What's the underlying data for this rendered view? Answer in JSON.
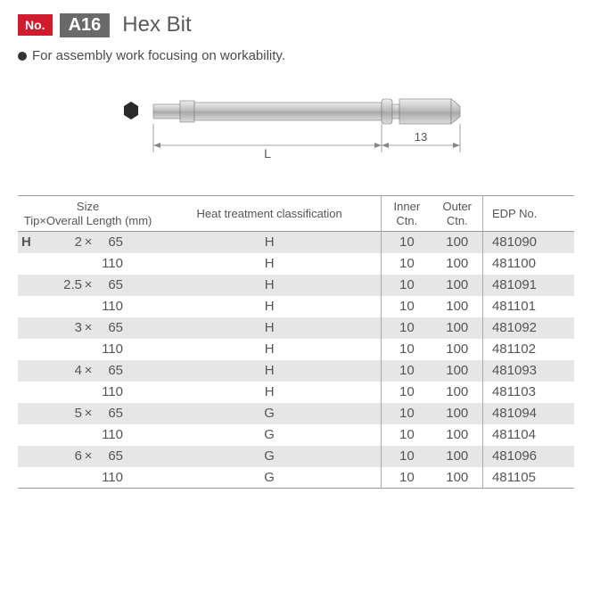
{
  "header": {
    "no_label": "No.",
    "code": "A16",
    "title": "Hex Bit"
  },
  "description": "For assembly work focusing on workability.",
  "diagram": {
    "L_label": "L",
    "shank_label": "13",
    "bit_fill": "#c8c8c8",
    "bit_stroke": "#7a7a7a",
    "dim_color": "#888888"
  },
  "table": {
    "headers": {
      "size_line1": "Size",
      "size_line2": "Tip×Overall Length (mm)",
      "heat": "Heat treatment classification",
      "inner": "Inner",
      "outer": "Outer",
      "ctn": "Ctn.",
      "edp": "EDP No."
    },
    "rows": [
      {
        "h": "H",
        "tip": "2",
        "x": "×",
        "len": "65",
        "heat": "H",
        "ictn": "10",
        "octn": "100",
        "edp": "481090",
        "shade": true
      },
      {
        "h": "",
        "tip": "",
        "x": "",
        "len": "110",
        "heat": "H",
        "ictn": "10",
        "octn": "100",
        "edp": "481100",
        "shade": false
      },
      {
        "h": "",
        "tip": "2.5",
        "x": "×",
        "len": "65",
        "heat": "H",
        "ictn": "10",
        "octn": "100",
        "edp": "481091",
        "shade": true
      },
      {
        "h": "",
        "tip": "",
        "x": "",
        "len": "110",
        "heat": "H",
        "ictn": "10",
        "octn": "100",
        "edp": "481101",
        "shade": false
      },
      {
        "h": "",
        "tip": "3",
        "x": "×",
        "len": "65",
        "heat": "H",
        "ictn": "10",
        "octn": "100",
        "edp": "481092",
        "shade": true
      },
      {
        "h": "",
        "tip": "",
        "x": "",
        "len": "110",
        "heat": "H",
        "ictn": "10",
        "octn": "100",
        "edp": "481102",
        "shade": false
      },
      {
        "h": "",
        "tip": "4",
        "x": "×",
        "len": "65",
        "heat": "H",
        "ictn": "10",
        "octn": "100",
        "edp": "481093",
        "shade": true
      },
      {
        "h": "",
        "tip": "",
        "x": "",
        "len": "110",
        "heat": "H",
        "ictn": "10",
        "octn": "100",
        "edp": "481103",
        "shade": false
      },
      {
        "h": "",
        "tip": "5",
        "x": "×",
        "len": "65",
        "heat": "G",
        "ictn": "10",
        "octn": "100",
        "edp": "481094",
        "shade": true
      },
      {
        "h": "",
        "tip": "",
        "x": "",
        "len": "110",
        "heat": "G",
        "ictn": "10",
        "octn": "100",
        "edp": "481104",
        "shade": false
      },
      {
        "h": "",
        "tip": "6",
        "x": "×",
        "len": "65",
        "heat": "G",
        "ictn": "10",
        "octn": "100",
        "edp": "481096",
        "shade": true
      },
      {
        "h": "",
        "tip": "",
        "x": "",
        "len": "110",
        "heat": "G",
        "ictn": "10",
        "octn": "100",
        "edp": "481105",
        "shade": false
      }
    ]
  },
  "colors": {
    "red": "#d11b2e",
    "gray_badge": "#6a6a6a",
    "text": "#4a4a4a",
    "shade": "#e6e6e6",
    "border": "#999999"
  }
}
